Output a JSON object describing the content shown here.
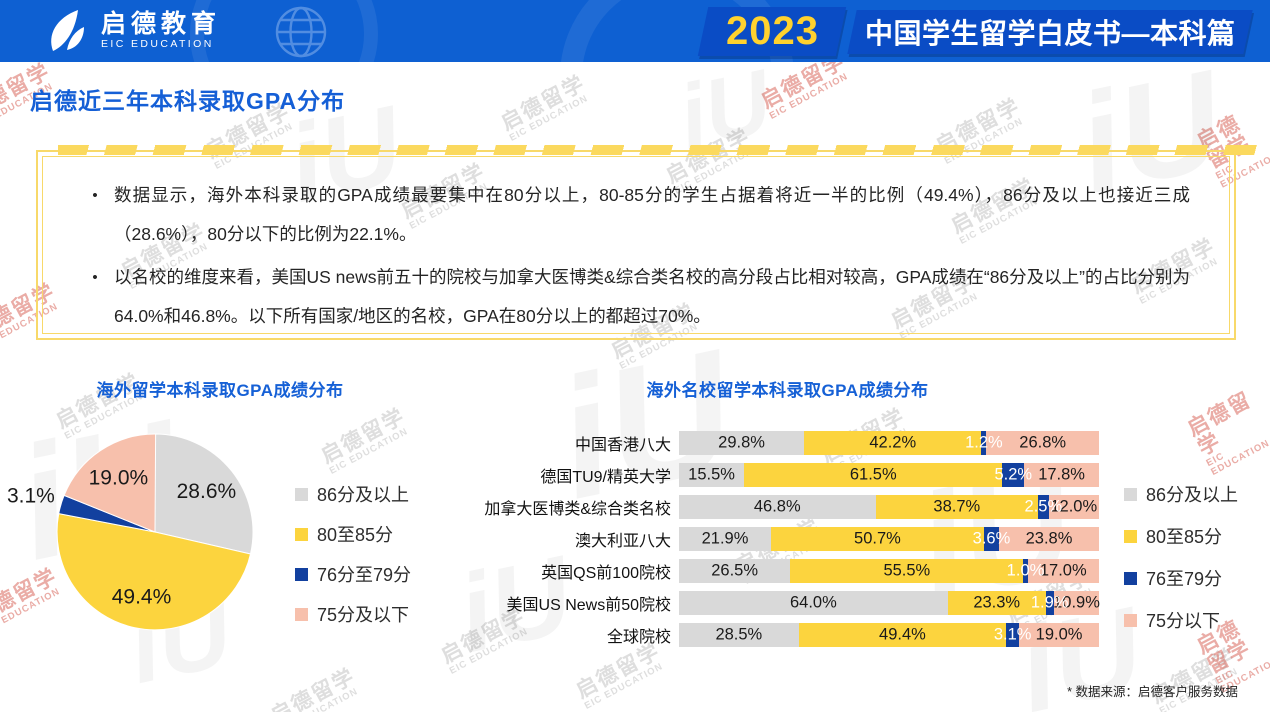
{
  "header": {
    "brand_cn": "启德教育",
    "brand_en": "EIC EDUCATION",
    "year_badge": "2023",
    "report_title": "中国学生留学白皮书—本科篇"
  },
  "page_title": "启德近三年本科录取GPA分布",
  "summary": {
    "bullet_char": "•",
    "bullets": [
      "数据显示，海外本科录取的GPA成绩最要集中在80分以上，80-85分的学生占据着将近一半的比例（49.4%），86分及以上也接近三成（28.6%），80分以下的比例为22.1%。",
      "以名校的维度来看，美国US news前五十的院校与加拿大医博类&综合类名校的高分段占比相对较高，GPA成绩在“86分及以上”的占比分别为64.0%和46.8%。以下所有国家/地区的名校，GPA在80分以上的都超过70%。"
    ]
  },
  "watermarks": {
    "stamp_cn": "启德留学",
    "stamp_en": "EIC EDUCATION",
    "mark": "iU"
  },
  "colors": {
    "header_blue": "#0e60d2",
    "badge_blue": "#0a4cc5",
    "accent_yellow": "#ffd22e",
    "title_blue": "#155fd6",
    "series_gray": "#d9d9d9",
    "series_yellow": "#fcd43e",
    "series_dark_blue": "#12409f",
    "series_pink": "#f7c0ac",
    "box_border_yellow": "#f8d96a"
  },
  "footnote": "* 数据来源：启德客户服务数据",
  "chart_data": [
    {
      "type": "pie",
      "title": "海外留学本科录取GPA成绩分布",
      "labels": [
        "86分及以上",
        "80至85分",
        "76分至79分",
        "75分及以下"
      ],
      "values": [
        28.6,
        49.4,
        3.1,
        19.0
      ],
      "colors": [
        "#d9d9d9",
        "#fcd43e",
        "#12409f",
        "#f7c0ac"
      ],
      "start_angle_deg": 0,
      "direction": "clockwise",
      "legend_position": "right"
    },
    {
      "type": "bar",
      "title": "海外名校留学本科录取GPA成绩分布",
      "orientation": "horizontal",
      "stacked": true,
      "unit": "%",
      "xlim": [
        0,
        100
      ],
      "categories": [
        "中国香港八大",
        "德国TU9/精英大学",
        "加拿大医博类&综合类名校",
        "澳大利亚八大",
        "英国QS前100院校",
        "美国US News前50院校",
        "全球院校"
      ],
      "series": [
        {
          "name": "86分及以上",
          "color": "#d9d9d9",
          "label_color": "#1a1a1a",
          "values": [
            29.8,
            15.5,
            46.8,
            21.9,
            26.5,
            64.0,
            28.5
          ]
        },
        {
          "name": "80至85分",
          "color": "#fcd43e",
          "label_color": "#1a1a1a",
          "values": [
            42.2,
            61.5,
            38.7,
            50.7,
            55.5,
            23.3,
            49.4
          ]
        },
        {
          "name": "76至79分",
          "color": "#12409f",
          "label_color": "#ffffff",
          "values": [
            1.2,
            5.2,
            2.5,
            3.6,
            1.0,
            1.9,
            3.1
          ]
        },
        {
          "name": "75分以下",
          "color": "#f7c0ac",
          "label_color": "#1a1a1a",
          "values": [
            26.8,
            17.8,
            12.0,
            23.8,
            17.0,
            10.9,
            19.0
          ]
        }
      ],
      "legend_position": "right"
    }
  ]
}
